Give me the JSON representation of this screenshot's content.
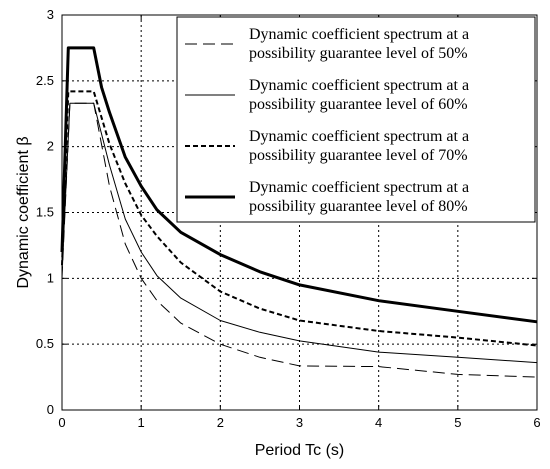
{
  "chart_data": {
    "type": "line",
    "title": "",
    "xlabel": "Period Tc (s)",
    "ylabel": "Dynamic coefficient β",
    "xlim": [
      0,
      6
    ],
    "ylim": [
      0,
      3
    ],
    "xticks": [
      0,
      1,
      2,
      3,
      4,
      5,
      6
    ],
    "yticks": [
      0,
      0.5,
      1,
      1.5,
      2,
      2.5,
      3
    ],
    "xtick_labels": [
      "0",
      "1",
      "2",
      "3",
      "4",
      "5",
      "6"
    ],
    "ytick_labels": [
      "0",
      "0.5",
      "1",
      "1.5",
      "2",
      "2.5",
      "3"
    ],
    "grid": true,
    "legend_position": "top-right",
    "series": [
      {
        "name_lines": [
          "Dynamic coefficient spectrum at a",
          "possibility guarantee level of 50%"
        ],
        "style": "long-dash",
        "line_width": 1,
        "color": "#000000",
        "points": [
          [
            0,
            1.0
          ],
          [
            0.1,
            2.33
          ],
          [
            0.4,
            2.33
          ],
          [
            0.6,
            1.7
          ],
          [
            0.8,
            1.26
          ],
          [
            1.0,
            1.0
          ],
          [
            1.2,
            0.83
          ],
          [
            1.5,
            0.66
          ],
          [
            2.0,
            0.5
          ],
          [
            2.5,
            0.4
          ],
          [
            3.0,
            0.335
          ],
          [
            4.0,
            0.33
          ],
          [
            4.5,
            0.3
          ],
          [
            5.0,
            0.27
          ],
          [
            6.0,
            0.25
          ]
        ]
      },
      {
        "name_lines": [
          "Dynamic coefficient spectrum at a",
          "possibility guarantee level of 60%"
        ],
        "style": "solid",
        "line_width": 1,
        "color": "#000000",
        "points": [
          [
            0,
            1.05
          ],
          [
            0.1,
            2.33
          ],
          [
            0.4,
            2.33
          ],
          [
            0.6,
            1.86
          ],
          [
            0.8,
            1.45
          ],
          [
            1.0,
            1.2
          ],
          [
            1.2,
            1.02
          ],
          [
            1.5,
            0.85
          ],
          [
            2.0,
            0.68
          ],
          [
            2.5,
            0.59
          ],
          [
            3.0,
            0.525
          ],
          [
            4.0,
            0.44
          ],
          [
            5.0,
            0.4
          ],
          [
            6.0,
            0.36
          ]
        ]
      },
      {
        "name_lines": [
          "Dynamic coefficient spectrum at a",
          "possibility guarantee level of 70%"
        ],
        "style": "short-dash",
        "line_width": 2,
        "color": "#000000",
        "points": [
          [
            0,
            1.1
          ],
          [
            0.08,
            2.42
          ],
          [
            0.4,
            2.42
          ],
          [
            0.6,
            2.02
          ],
          [
            0.8,
            1.72
          ],
          [
            1.0,
            1.48
          ],
          [
            1.2,
            1.32
          ],
          [
            1.5,
            1.12
          ],
          [
            2.0,
            0.9
          ],
          [
            2.5,
            0.77
          ],
          [
            3.0,
            0.68
          ],
          [
            4.0,
            0.6
          ],
          [
            5.0,
            0.55
          ],
          [
            6.0,
            0.49
          ]
        ]
      },
      {
        "name_lines": [
          "Dynamic coefficient spectrum at a",
          "possibility guarantee level of 80%"
        ],
        "style": "solid",
        "line_width": 3,
        "color": "#000000",
        "points": [
          [
            0,
            1.2
          ],
          [
            0.08,
            2.75
          ],
          [
            0.4,
            2.75
          ],
          [
            0.5,
            2.45
          ],
          [
            0.6,
            2.26
          ],
          [
            0.8,
            1.92
          ],
          [
            1.0,
            1.7
          ],
          [
            1.2,
            1.52
          ],
          [
            1.5,
            1.35
          ],
          [
            2.0,
            1.18
          ],
          [
            2.5,
            1.05
          ],
          [
            3.0,
            0.95
          ],
          [
            4.0,
            0.83
          ],
          [
            5.0,
            0.75
          ],
          [
            6.0,
            0.67
          ]
        ]
      }
    ]
  }
}
